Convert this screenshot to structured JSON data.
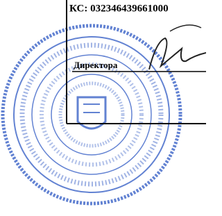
{
  "document": {
    "certificate": "КС: 032346439661000",
    "signer_label": "Директора"
  }
}
